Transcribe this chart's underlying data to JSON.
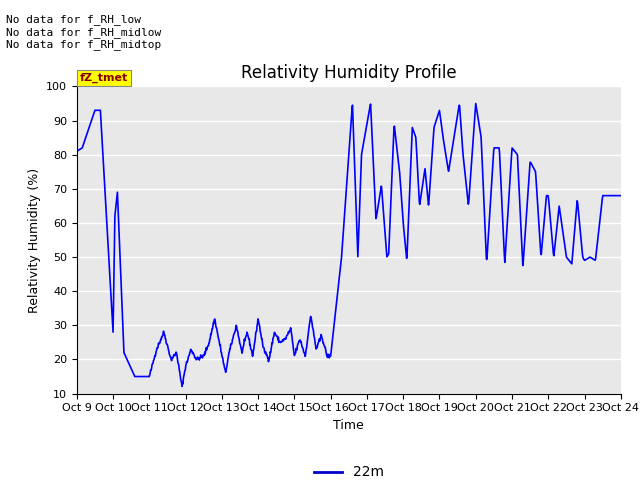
{
  "title": "Relativity Humidity Profile",
  "ylabel": "Relativity Humidity (%)",
  "xlabel": "Time",
  "ylim": [
    10,
    100
  ],
  "line_color": "#0000FF",
  "line_width": 1.2,
  "legend_label": "22m",
  "legend_line_color": "#0000CD",
  "background_color": "#ffffff",
  "plot_bg_color": "#e8e8e8",
  "grid_color": "#ffffff",
  "annotations": [
    "No data for f_RH_low",
    "No data for f_RH_midlow",
    "No data for f_RH_midtop"
  ],
  "legend_box_label": "fZ_tmet",
  "xtick_labels": [
    "Oct 9",
    "Oct 10",
    "Oct 11",
    "Oct 12",
    "Oct 13",
    "Oct 14",
    "Oct 15",
    "Oct 16",
    "Oct 17",
    "Oct 18",
    "Oct 19",
    "Oct 20",
    "Oct 21",
    "Oct 22",
    "Oct 23",
    "Oct 24"
  ],
  "ytick_values": [
    10,
    20,
    30,
    40,
    50,
    60,
    70,
    80,
    90,
    100
  ],
  "title_fontsize": 12,
  "axis_fontsize": 9,
  "tick_fontsize": 8
}
